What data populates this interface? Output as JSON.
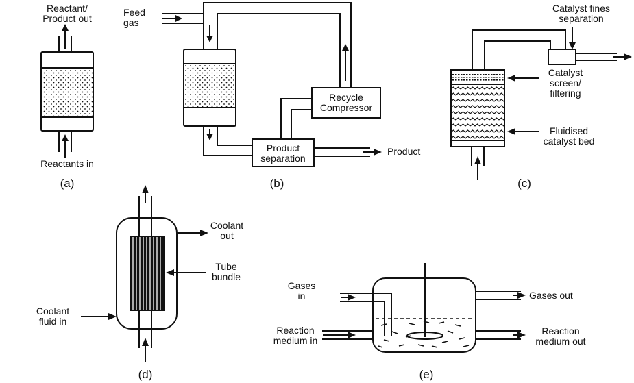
{
  "diagrams": {
    "a": {
      "caption": "(a)",
      "top_label": "Reactant/\nProduct out",
      "bottom_label": "Reactants in"
    },
    "b": {
      "caption": "(b)",
      "feed_label": "Feed\ngas",
      "compressor_label": "Recycle\nCompressor",
      "separation_label": "Product\nseparation",
      "product_label": "Product"
    },
    "c": {
      "caption": "(c)",
      "fines_label": "Catalyst fines\nseparation",
      "screen_label": "Catalyst\nscreen/\nfiltering",
      "bed_label": "Fluidised\ncatalyst bed"
    },
    "d": {
      "caption": "(d)",
      "coolant_out_label": "Coolant\nout",
      "tube_bundle_label": "Tube\nbundle",
      "coolant_in_label": "Coolant\nfluid in"
    },
    "e": {
      "caption": "(e)",
      "gases_in_label": "Gases\nin",
      "gases_out_label": "Gases out",
      "medium_in_label": "Reaction\nmedium in",
      "medium_out_label": "Reaction\nmedium out"
    }
  }
}
